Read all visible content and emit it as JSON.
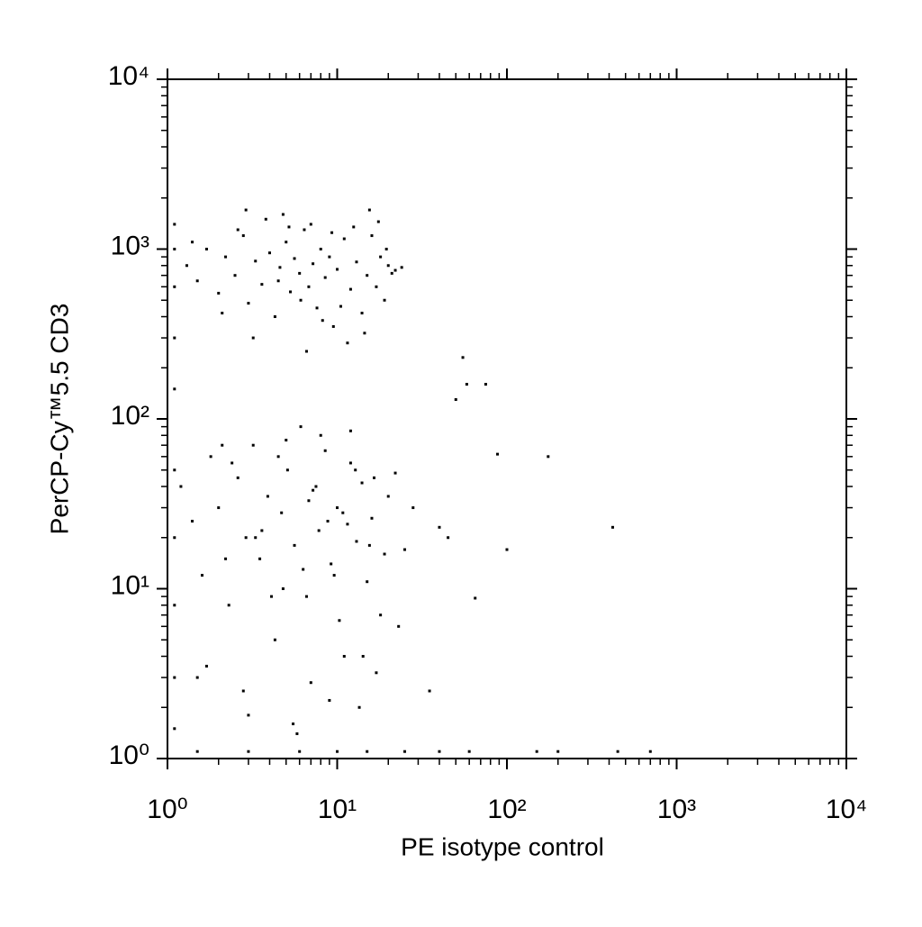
{
  "chart_data": {
    "type": "scatter",
    "xlabel": "PE isotype control",
    "ylabel": "PerCP-Cy™5.5 CD3",
    "xscale": "log",
    "yscale": "log",
    "xlim": [
      1,
      10000
    ],
    "ylim": [
      1,
      10000
    ],
    "xticks": [
      {
        "value": 1,
        "label": "10⁰"
      },
      {
        "value": 10,
        "label": "10¹"
      },
      {
        "value": 100,
        "label": "10²"
      },
      {
        "value": 1000,
        "label": "10³"
      },
      {
        "value": 10000,
        "label": "10⁴"
      }
    ],
    "yticks": [
      {
        "value": 1,
        "label": "10⁰"
      },
      {
        "value": 10,
        "label": "10¹"
      },
      {
        "value": 100,
        "label": "10²"
      },
      {
        "value": 1000,
        "label": "10³"
      },
      {
        "value": 10000,
        "label": "10⁴"
      }
    ],
    "series": [
      {
        "color": "#000000",
        "x": [
          1.3,
          1.5,
          1.7,
          2,
          2.2,
          2.5,
          2.8,
          3,
          3.3,
          3.6,
          4,
          4.3,
          4.6,
          5,
          5.3,
          5.6,
          6,
          6.4,
          6.8,
          7.2,
          7.6,
          8,
          8.5,
          9,
          9.5,
          10,
          11,
          12,
          13,
          14,
          15,
          16,
          17,
          18,
          19,
          20,
          22,
          24,
          1.4,
          2.1,
          2.6,
          3.2,
          3.8,
          4.5,
          5.2,
          6.1,
          7,
          8.2,
          9.3,
          10.5,
          12.5,
          14.5,
          17.5,
          21,
          2.9,
          4.8,
          6.6,
          11.5,
          15.5,
          19.5,
          1.2,
          1.4,
          1.6,
          1.8,
          2,
          2.3,
          2.6,
          2.9,
          3.2,
          3.5,
          3.9,
          4.3,
          4.7,
          5.1,
          5.6,
          6.1,
          6.6,
          7.2,
          7.8,
          8.5,
          9.2,
          10,
          11,
          12,
          13,
          14,
          15,
          16,
          18,
          20,
          22,
          25,
          28,
          1.5,
          2.1,
          2.8,
          3.6,
          4.5,
          5.5,
          6.8,
          8,
          9.6,
          11.5,
          13.5,
          16.5,
          19,
          23,
          1.7,
          2.4,
          3.3,
          4.1,
          5,
          6.3,
          7.5,
          9,
          10.8,
          12.8,
          15.5,
          3,
          4.8,
          7,
          10.3,
          14.2,
          2.2,
          5.8,
          8.8,
          12,
          17,
          1.1,
          1.1,
          1.1,
          1.1,
          1.1,
          1.1,
          1.1,
          1.1,
          1.1,
          1.1,
          1.5,
          3,
          6,
          10,
          15,
          25,
          40,
          60,
          150,
          200,
          450,
          700,
          55,
          58,
          50,
          75,
          88,
          175,
          420,
          65,
          100,
          40,
          35,
          45
        ],
        "y": [
          800,
          650,
          1000,
          550,
          900,
          700,
          1200,
          480,
          850,
          620,
          950,
          400,
          780,
          1100,
          560,
          880,
          720,
          1300,
          600,
          820,
          450,
          1000,
          680,
          900,
          350,
          760,
          1150,
          580,
          840,
          420,
          700,
          1200,
          600,
          900,
          500,
          800,
          750,
          780,
          1100,
          420,
          1300,
          300,
          1500,
          650,
          1350,
          500,
          1400,
          380,
          1250,
          460,
          1350,
          320,
          1450,
          720,
          1700,
          1600,
          250,
          280,
          1700,
          1000,
          40,
          25,
          12,
          60,
          30,
          8,
          45,
          20,
          70,
          15,
          35,
          5,
          28,
          50,
          18,
          90,
          9,
          38,
          22,
          65,
          14,
          30,
          4,
          55,
          19,
          42,
          11,
          26,
          7,
          35,
          48,
          17,
          30,
          3,
          70,
          2.5,
          22,
          60,
          1.6,
          33,
          80,
          12,
          24,
          2,
          45,
          16,
          6,
          3.5,
          55,
          20,
          9,
          75,
          13,
          40,
          2.2,
          28,
          50,
          18,
          1.8,
          10,
          2.8,
          6.5,
          4,
          15,
          1.4,
          25,
          85,
          3.2,
          1.5,
          3,
          8,
          20,
          50,
          150,
          300,
          600,
          1000,
          1400,
          1.1,
          1.1,
          1.1,
          1.1,
          1.1,
          1.1,
          1.1,
          1.1,
          1.1,
          1.1,
          1.1,
          1.1,
          230,
          160,
          130,
          160,
          62,
          60,
          23,
          8.8,
          17,
          23,
          2.5,
          20
        ]
      }
    ]
  }
}
